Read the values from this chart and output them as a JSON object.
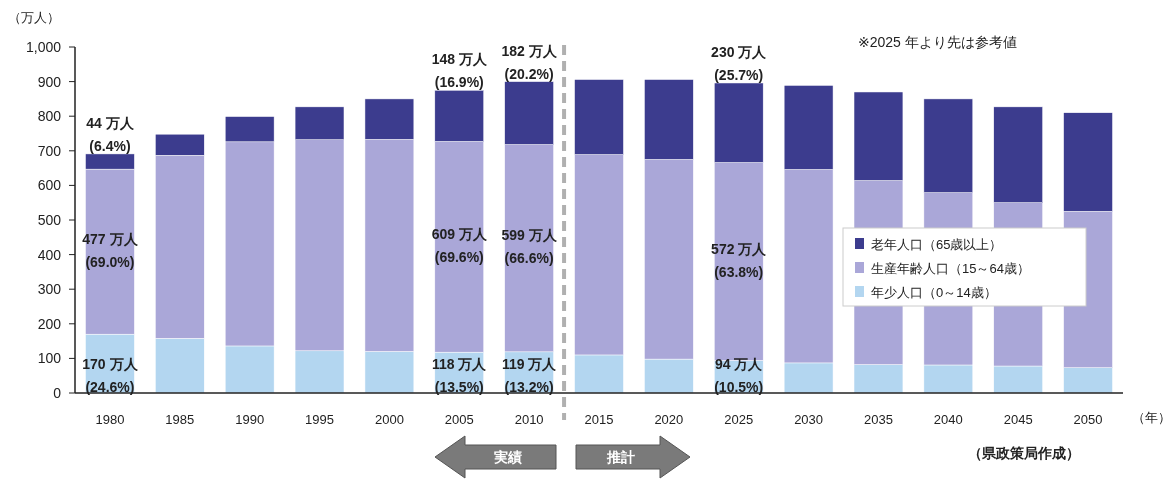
{
  "chart_data": {
    "type": "bar",
    "stacked": true,
    "ylabel": "（万人）",
    "xlabel": "（年）",
    "x": [
      1980,
      1985,
      1990,
      1995,
      2000,
      2005,
      2010,
      2015,
      2020,
      2025,
      2030,
      2035,
      2040,
      2045,
      2050
    ],
    "xlim": [
      1977.5,
      2052.5
    ],
    "xticks": [
      1980,
      1985,
      1990,
      1995,
      2000,
      2005,
      2010,
      2015,
      2020,
      2025,
      2030,
      2035,
      2040,
      2045,
      2050
    ],
    "ylim": [
      0,
      1000
    ],
    "yticks": [
      0,
      100,
      200,
      300,
      400,
      500,
      600,
      700,
      800,
      900,
      {
        "value": 1000,
        "label": "1,000"
      }
    ],
    "series": [
      {
        "name": "年少人口（0～14歳）",
        "color": "#b3d6f0",
        "values": [
          170,
          158,
          136,
          122,
          120,
          118,
          119,
          110,
          98,
          94,
          87,
          82,
          81,
          78,
          73
        ],
        "value_labels": [
          "170 万人\n(24.6%)",
          null,
          null,
          null,
          null,
          "118 万人\n(13.5%)",
          "119 万人\n(13.2%)",
          null,
          null,
          "94 万人\n(10.5%)",
          null,
          null,
          null,
          null,
          null
        ]
      },
      {
        "name": "生産年齢人口（15～64歳）",
        "color": "#aaa7d8",
        "values": [
          477,
          529,
          590,
          610,
          613,
          609,
          599,
          579,
          577,
          572,
          559,
          532,
          498,
          472,
          452
        ],
        "value_labels": [
          "477 万人\n(69.0%)",
          null,
          null,
          null,
          null,
          "609 万人\n(69.6%)",
          "599 万人\n(66.6%)",
          null,
          null,
          "572 万人\n(63.8%)",
          null,
          null,
          null,
          null,
          null
        ]
      },
      {
        "name": "老年人口（65歳以上）",
        "color": "#3c3c8e",
        "values": [
          44,
          61,
          73,
          95,
          117,
          148,
          182,
          217,
          231,
          230,
          243,
          256,
          271,
          277,
          285
        ],
        "value_labels": [
          "44 万人\n(6.4%)",
          null,
          null,
          null,
          null,
          "148 万人\n(16.9%)",
          "182 万人\n(20.2%)",
          null,
          null,
          "230 万人\n(25.7%)",
          null,
          null,
          null,
          null,
          null
        ]
      }
    ],
    "ref_lines": [
      {
        "axis": "x",
        "value": 2012.5,
        "color": "#b0b0b0",
        "line_style": "dashed"
      }
    ],
    "legend": "right",
    "grid": false,
    "annotations": [
      "※2025 年より先は参考値",
      "（県政策局作成）",
      "実績",
      "推計"
    ]
  }
}
